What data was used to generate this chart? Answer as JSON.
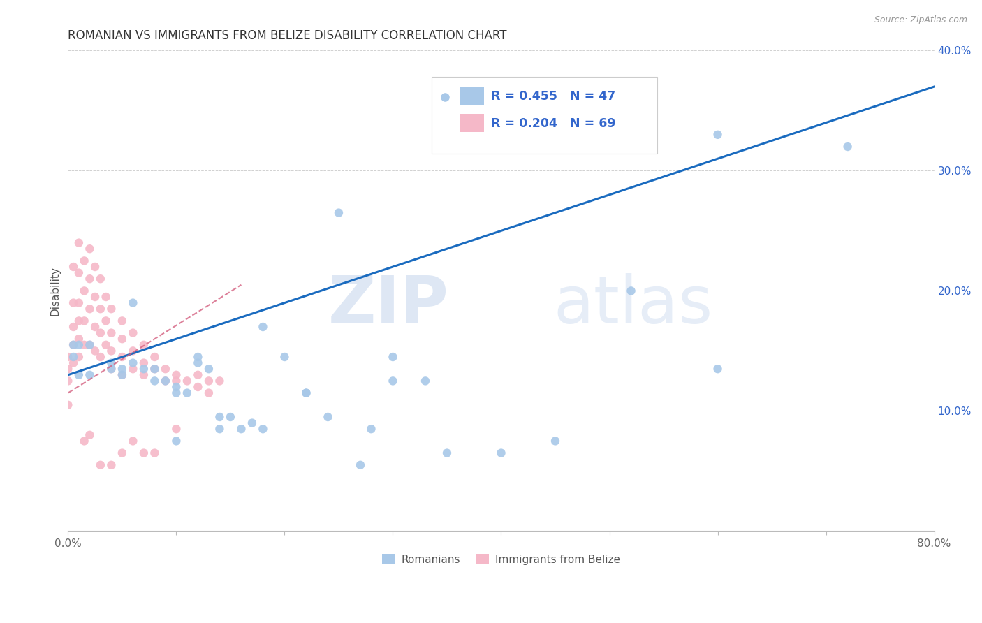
{
  "title": "ROMANIAN VS IMMIGRANTS FROM BELIZE DISABILITY CORRELATION CHART",
  "source": "Source: ZipAtlas.com",
  "ylabel": "Disability",
  "xlim": [
    0.0,
    0.8
  ],
  "ylim": [
    0.0,
    0.4
  ],
  "blue_color": "#a8c8e8",
  "pink_color": "#f5b8c8",
  "blue_line_color": "#1a6bbf",
  "pink_line_color": "#d46080",
  "R_blue": 0.455,
  "N_blue": 47,
  "R_pink": 0.204,
  "N_pink": 69,
  "blue_scatter_x": [
    0.005,
    0.01,
    0.02,
    0.04,
    0.05,
    0.05,
    0.06,
    0.07,
    0.08,
    0.09,
    0.1,
    0.1,
    0.11,
    0.12,
    0.12,
    0.13,
    0.14,
    0.15,
    0.16,
    0.17,
    0.18,
    0.2,
    0.22,
    0.22,
    0.24,
    0.25,
    0.27,
    0.28,
    0.3,
    0.3,
    0.33,
    0.35,
    0.4,
    0.45,
    0.52,
    0.6,
    0.6,
    0.72,
    0.005,
    0.01,
    0.02,
    0.04,
    0.06,
    0.08,
    0.1,
    0.14,
    0.18
  ],
  "blue_scatter_y": [
    0.145,
    0.13,
    0.13,
    0.135,
    0.13,
    0.135,
    0.19,
    0.135,
    0.125,
    0.125,
    0.115,
    0.12,
    0.115,
    0.145,
    0.14,
    0.135,
    0.095,
    0.095,
    0.085,
    0.09,
    0.085,
    0.145,
    0.115,
    0.115,
    0.095,
    0.265,
    0.055,
    0.085,
    0.145,
    0.125,
    0.125,
    0.065,
    0.065,
    0.075,
    0.2,
    0.33,
    0.135,
    0.32,
    0.155,
    0.155,
    0.155,
    0.14,
    0.14,
    0.135,
    0.075,
    0.085,
    0.17
  ],
  "pink_scatter_x": [
    0.0,
    0.0,
    0.0,
    0.0,
    0.005,
    0.005,
    0.005,
    0.005,
    0.005,
    0.01,
    0.01,
    0.01,
    0.01,
    0.01,
    0.01,
    0.015,
    0.015,
    0.015,
    0.015,
    0.02,
    0.02,
    0.02,
    0.02,
    0.025,
    0.025,
    0.025,
    0.025,
    0.03,
    0.03,
    0.03,
    0.03,
    0.035,
    0.035,
    0.035,
    0.04,
    0.04,
    0.04,
    0.04,
    0.05,
    0.05,
    0.05,
    0.05,
    0.06,
    0.06,
    0.06,
    0.07,
    0.07,
    0.07,
    0.08,
    0.08,
    0.09,
    0.09,
    0.1,
    0.1,
    0.11,
    0.12,
    0.12,
    0.13,
    0.13,
    0.14,
    0.05,
    0.03,
    0.04,
    0.06,
    0.07,
    0.08,
    0.1,
    0.02,
    0.015
  ],
  "pink_scatter_y": [
    0.145,
    0.135,
    0.125,
    0.105,
    0.22,
    0.19,
    0.17,
    0.155,
    0.14,
    0.24,
    0.215,
    0.19,
    0.175,
    0.16,
    0.145,
    0.225,
    0.2,
    0.175,
    0.155,
    0.235,
    0.21,
    0.185,
    0.155,
    0.22,
    0.195,
    0.17,
    0.15,
    0.21,
    0.185,
    0.165,
    0.145,
    0.195,
    0.175,
    0.155,
    0.185,
    0.165,
    0.15,
    0.135,
    0.175,
    0.16,
    0.145,
    0.13,
    0.165,
    0.15,
    0.135,
    0.155,
    0.14,
    0.13,
    0.145,
    0.135,
    0.135,
    0.125,
    0.13,
    0.125,
    0.125,
    0.13,
    0.12,
    0.125,
    0.115,
    0.125,
    0.065,
    0.055,
    0.055,
    0.075,
    0.065,
    0.065,
    0.085,
    0.08,
    0.075
  ],
  "watermark_zip": "ZIP",
  "watermark_atlas": "atlas",
  "background_color": "#ffffff",
  "grid_color": "#cccccc",
  "legend_text_color": "#3366cc"
}
